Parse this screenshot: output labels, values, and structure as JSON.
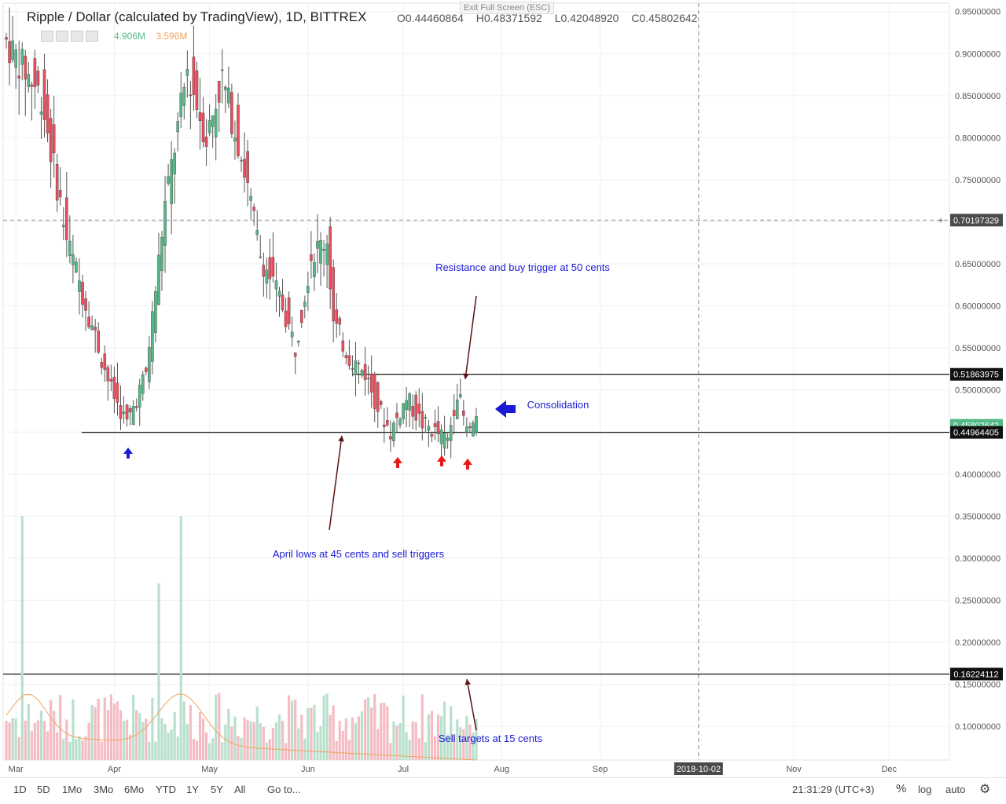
{
  "header": {
    "title": "Ripple / Dollar (calculated by TradingView), 1D, BITTREX",
    "ohlc": {
      "o": "O0.44460864",
      "h": "H0.48371592",
      "l": "L0.42048920",
      "c": "C0.45802642"
    },
    "vol1": "4.906M",
    "vol2": "3.596M",
    "exit_fullscreen": "Exit Full Screen (ESC)"
  },
  "toolbar": {
    "ranges": [
      "1D",
      "5D",
      "1Mo",
      "3Mo",
      "6Mo",
      "YTD",
      "1Y",
      "5Y",
      "All"
    ],
    "goto": "Go to...",
    "time": "21:31:29 (UTC+3)",
    "percent": "%",
    "log": "log",
    "auto": "auto"
  },
  "colors": {
    "up": "#53b987",
    "down": "#eb4d5c",
    "vol_up": "#b8e0cc",
    "vol_down": "#f5bcc3",
    "ma": "#f0a35e",
    "annotation": "#1a1ad6"
  },
  "chart_data": {
    "type": "candlestick",
    "title": "Ripple / Dollar (calculated by TradingView), 1D, BITTREX",
    "ylim": [
      0.06,
      0.96
    ],
    "y_ticks": [
      "0.95000000",
      "0.90000000",
      "0.85000000",
      "0.80000000",
      "0.75000000",
      "0.70000000",
      "0.65000000",
      "0.60000000",
      "0.55000000",
      "0.50000000",
      "0.45000000",
      "0.40000000",
      "0.35000000",
      "0.30000000",
      "0.25000000",
      "0.20000000",
      "0.15000000",
      "0.10000000"
    ],
    "x_labels": [
      "Mar",
      "Apr",
      "May",
      "Jun",
      "Jul",
      "Aug",
      "Sep",
      "2018-10-02",
      "Nov",
      "Dec"
    ],
    "x_range": [
      "2018-02-25",
      "2018-12-20"
    ],
    "price_labels": [
      {
        "value": "0.70197329",
        "kind": "crosshair"
      },
      {
        "value": "0.51863975",
        "kind": "line"
      },
      {
        "value": "0.45802642",
        "kind": "last"
      },
      {
        "value": "0.44964405",
        "kind": "line"
      },
      {
        "value": "0.16224112",
        "kind": "line"
      }
    ],
    "horizontal_lines": [
      0.51863975,
      0.44964405,
      0.16224112
    ],
    "crosshair": {
      "price": 0.70197329,
      "date": "2018-10-02"
    },
    "annotations": [
      {
        "text": "Resistance and buy trigger at 50 cents"
      },
      {
        "text": "Consolidation"
      },
      {
        "text": "April lows at 45 cents and sell triggers"
      },
      {
        "text": "Sell targets at 15 cents"
      }
    ],
    "key_prices": [
      {
        "date": "2018-02-26",
        "close": 0.92
      },
      {
        "date": "2018-03-10",
        "close": 0.85
      },
      {
        "date": "2018-03-18",
        "close": 0.68
      },
      {
        "date": "2018-04-01",
        "close": 0.5
      },
      {
        "date": "2018-04-06",
        "close": 0.46
      },
      {
        "date": "2018-04-12",
        "close": 0.52
      },
      {
        "date": "2018-04-18",
        "close": 0.72
      },
      {
        "date": "2018-04-25",
        "close": 0.88
      },
      {
        "date": "2018-05-01",
        "close": 0.8
      },
      {
        "date": "2018-05-06",
        "close": 0.87
      },
      {
        "date": "2018-05-12",
        "close": 0.78
      },
      {
        "date": "2018-05-18",
        "close": 0.66
      },
      {
        "date": "2018-05-25",
        "close": 0.6
      },
      {
        "date": "2018-05-29",
        "close": 0.55
      },
      {
        "date": "2018-06-03",
        "close": 0.66
      },
      {
        "date": "2018-06-08",
        "close": 0.68
      },
      {
        "date": "2018-06-10",
        "close": 0.58
      },
      {
        "date": "2018-06-15",
        "close": 0.54
      },
      {
        "date": "2018-06-20",
        "close": 0.52
      },
      {
        "date": "2018-06-24",
        "close": 0.48
      },
      {
        "date": "2018-06-28",
        "close": 0.45
      },
      {
        "date": "2018-07-03",
        "close": 0.49
      },
      {
        "date": "2018-07-08",
        "close": 0.46
      },
      {
        "date": "2018-07-12",
        "close": 0.45
      },
      {
        "date": "2018-07-16",
        "close": 0.44
      },
      {
        "date": "2018-07-19",
        "close": 0.5
      },
      {
        "date": "2018-07-22",
        "close": 0.45
      },
      {
        "date": "2018-07-24",
        "close": 0.458
      }
    ],
    "volume_peaks": [
      {
        "date": "2018-03-03",
        "value": 0.29
      },
      {
        "date": "2018-04-22",
        "value": 0.29
      },
      {
        "date": "2018-04-15",
        "value": 0.21
      }
    ]
  }
}
